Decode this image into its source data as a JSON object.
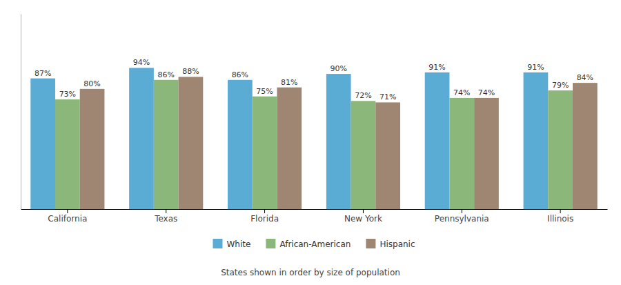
{
  "chart_data": {
    "type": "bar",
    "subtitle": "States shown in order by size of population",
    "categories": [
      "California",
      "Texas",
      "Florida",
      "New York",
      "Pennsylvania",
      "Illinois"
    ],
    "series": [
      {
        "name": "White",
        "color": "#5BACD4",
        "values": [
          87,
          94,
          86,
          90,
          91,
          91
        ],
        "value_labels": [
          "87%",
          "94%",
          "86%",
          "90%",
          "91%",
          "91%"
        ]
      },
      {
        "name": "African-American",
        "color": "#8BB87A",
        "values": [
          73,
          86,
          75,
          72,
          74,
          79
        ],
        "value_labels": [
          "73%",
          "86%",
          "75%",
          "72%",
          "74%",
          "79%"
        ]
      },
      {
        "name": "Hispanic",
        "color": "#9E8672",
        "values": [
          80,
          88,
          81,
          71,
          74,
          84
        ],
        "value_labels": [
          "80%",
          "88%",
          "81%",
          "71%",
          "74%",
          "84%"
        ]
      }
    ],
    "ylim": [
      0,
      130
    ],
    "data_labels": true,
    "tick_labels": "x",
    "legend": "bottom"
  }
}
